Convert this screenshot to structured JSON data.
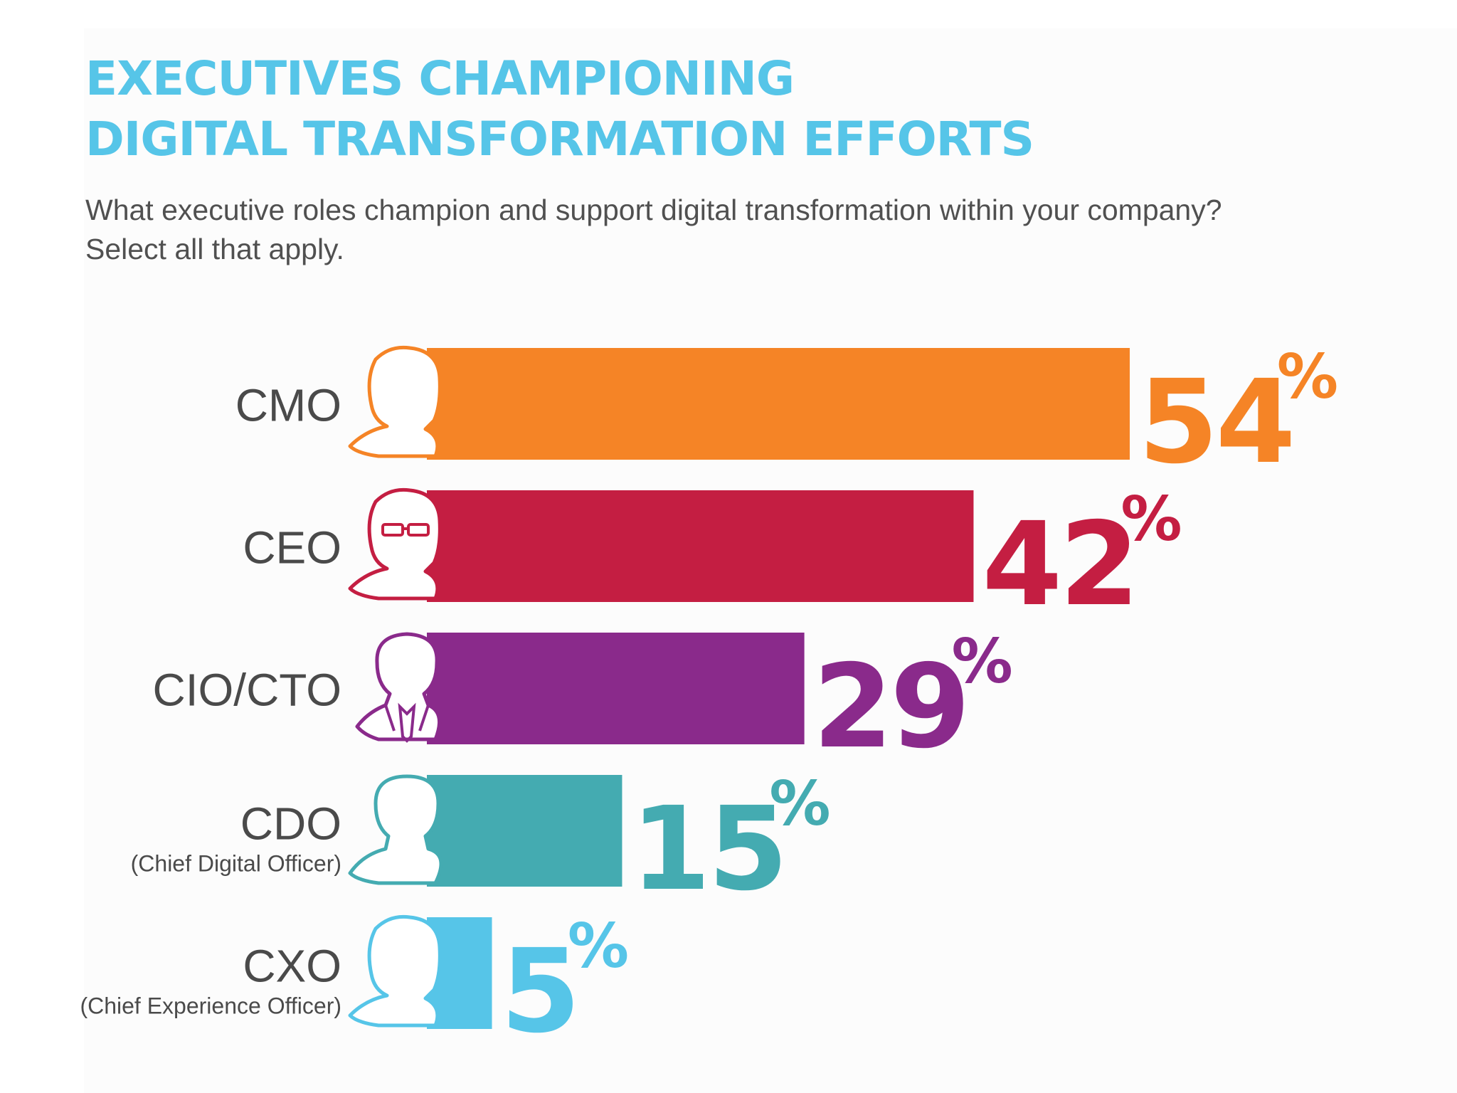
{
  "title": {
    "line1": "EXECUTIVES CHAMPIONING",
    "line2": "DIGITAL TRANSFORMATION EFFORTS"
  },
  "subtitle": {
    "line1": "What executive roles champion and support digital transformation within your company?",
    "line2": "Select all that apply."
  },
  "chart_data": {
    "type": "bar",
    "orientation": "horizontal",
    "title": "EXECUTIVES CHAMPIONING DIGITAL TRANSFORMATION EFFORTS",
    "xlabel": "",
    "ylabel": "",
    "xlim": [
      0,
      54
    ],
    "grid": false,
    "value_suffix": "%",
    "categories": [
      "CMO",
      "CEO",
      "CIO/CTO",
      "CDO",
      "CXO"
    ],
    "sublabels": [
      "",
      "",
      "",
      "(Chief Digital Officer)",
      "(Chief Experience Officer)"
    ],
    "values": [
      54,
      42,
      29,
      15,
      5
    ],
    "value_labels": [
      "54",
      "42",
      "29",
      "15",
      "5"
    ],
    "colors": [
      "#f58426",
      "#c41e42",
      "#8a2a8b",
      "#44abb1",
      "#56c5e8"
    ],
    "icons": [
      "woman-icon",
      "woman-glasses-icon",
      "man-suit-icon",
      "man-icon",
      "woman-icon"
    ]
  }
}
